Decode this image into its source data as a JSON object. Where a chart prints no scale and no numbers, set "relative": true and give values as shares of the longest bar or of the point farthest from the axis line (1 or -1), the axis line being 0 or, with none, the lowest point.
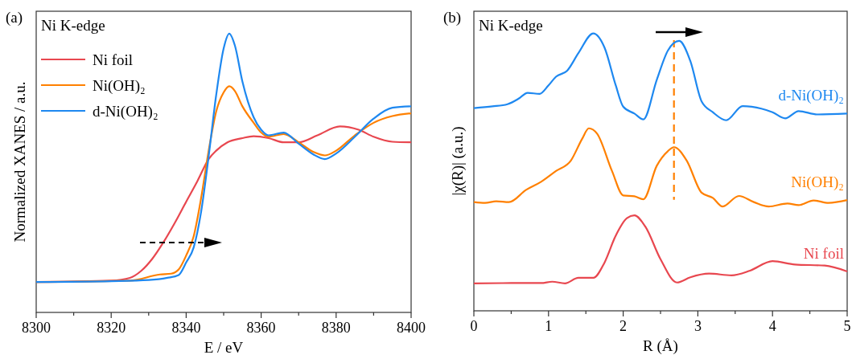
{
  "chart_data": [
    {
      "type": "line",
      "title": "(a)",
      "xlabel": "E / eV",
      "ylabel": "Normalized XANES / a.u.",
      "relative": true,
      "legend": "top left",
      "annotations": [
        "Ni K-edge"
      ],
      "xlim": [
        8300,
        8400
      ],
      "xticks": [
        8300,
        {
          "value": 8310,
          "label": null
        },
        8320,
        {
          "value": 8330,
          "label": null
        },
        8340,
        {
          "value": 8350,
          "label": null
        },
        8360,
        {
          "value": 8370,
          "label": null
        },
        8380,
        {
          "value": 8390,
          "label": null
        },
        8400
      ],
      "series": [
        {
          "name": "Ni foil",
          "color": "#e8474f",
          "x": [
            8300,
            8320,
            8325,
            8328,
            8331,
            8334,
            8337,
            8340,
            8343,
            8346,
            8348,
            8351,
            8355,
            8358,
            8362,
            8366,
            8370,
            8375,
            8381,
            8386,
            8390,
            8395,
            8400
          ],
          "values": [
            0.109,
            0.114,
            0.124,
            0.149,
            0.193,
            0.253,
            0.322,
            0.397,
            0.471,
            0.55,
            0.58,
            0.61,
            0.625,
            0.632,
            0.625,
            0.61,
            0.61,
            0.635,
            0.667,
            0.655,
            0.63,
            0.612,
            0.61
          ]
        },
        {
          "name": "Ni(OH)₂",
          "color": "#ff8000",
          "x": [
            8300,
            8325,
            8333,
            8336,
            8338,
            8340,
            8342,
            8344,
            8346,
            8348,
            8350,
            8351.5,
            8353,
            8355,
            8358,
            8360,
            8362,
            8366,
            8370,
            8374,
            8377,
            8380,
            8385,
            8390,
            8395,
            8400
          ],
          "values": [
            0.109,
            0.114,
            0.136,
            0.139,
            0.154,
            0.204,
            0.273,
            0.411,
            0.58,
            0.72,
            0.789,
            0.811,
            0.794,
            0.739,
            0.68,
            0.645,
            0.63,
            0.64,
            0.61,
            0.575,
            0.563,
            0.58,
            0.635,
            0.68,
            0.704,
            0.714
          ]
        },
        {
          "name": "d-Ni(OH)₂",
          "color": "#1e88f0",
          "x": [
            8300,
            8320,
            8330,
            8335,
            8338,
            8340,
            8342,
            8344,
            8346,
            8348,
            8350,
            8351.5,
            8353,
            8355,
            8358,
            8360,
            8362,
            8366,
            8370,
            8374,
            8377,
            8380,
            8385,
            8390,
            8395,
            8400
          ],
          "values": [
            0.109,
            0.112,
            0.116,
            0.124,
            0.134,
            0.179,
            0.233,
            0.362,
            0.56,
            0.779,
            0.947,
            1,
            0.957,
            0.828,
            0.7,
            0.655,
            0.635,
            0.645,
            0.605,
            0.566,
            0.55,
            0.57,
            0.63,
            0.695,
            0.734,
            0.739
          ]
        }
      ]
    },
    {
      "type": "line",
      "title": "(b)",
      "xlabel": "R (Å)",
      "ylabel": "|χ(R)| (a.u.)",
      "relative": true,
      "legend": false,
      "annotations": [
        "Ni K-edge"
      ],
      "xlim": [
        0,
        5
      ],
      "xticks": [
        0,
        {
          "value": 0.5,
          "label": null
        },
        1,
        {
          "value": 1.5,
          "label": null
        },
        2,
        {
          "value": 2.5,
          "label": null
        },
        3,
        {
          "value": 3.5,
          "label": null
        },
        4,
        {
          "value": 4.5,
          "label": null
        },
        5
      ],
      "ref_lines": [
        {
          "axis": "x",
          "value": 2.68,
          "color": "#ff8000",
          "line_style": "dashed"
        }
      ],
      "series": [
        {
          "name": "d-Ni(OH)₂",
          "color": "#1e88f0",
          "x": [
            0,
            0.25,
            0.45,
            0.6,
            0.72,
            0.88,
            1.0,
            1.1,
            1.25,
            1.4,
            1.6,
            1.75,
            1.9,
            2.0,
            2.15,
            2.27,
            2.45,
            2.6,
            2.75,
            2.9,
            3.05,
            3.2,
            3.38,
            3.6,
            3.85,
            4.0,
            4.17,
            4.35,
            4.6,
            5
          ],
          "values": [
            0.731,
            0.737,
            0.745,
            0.765,
            0.786,
            0.782,
            0.813,
            0.844,
            0.866,
            0.929,
            1,
            0.949,
            0.813,
            0.736,
            0.711,
            0.69,
            0.833,
            0.939,
            0.973,
            0.9,
            0.755,
            0.716,
            0.687,
            0.738,
            0.729,
            0.716,
            0.694,
            0.72,
            0.708,
            0.711
          ]
        },
        {
          "name": "Ni(OH)₂",
          "color": "#ff8000",
          "x": [
            0,
            0.15,
            0.3,
            0.47,
            0.7,
            0.9,
            1.1,
            1.3,
            1.45,
            1.54,
            1.65,
            1.85,
            2.0,
            2.15,
            2.27,
            2.45,
            2.6,
            2.68,
            2.85,
            3.05,
            3.2,
            3.33,
            3.55,
            3.75,
            3.95,
            4.2,
            4.35,
            4.55,
            4.75,
            5
          ],
          "values": [
            0.392,
            0.389,
            0.395,
            0.392,
            0.436,
            0.465,
            0.504,
            0.542,
            0.62,
            0.658,
            0.639,
            0.504,
            0.416,
            0.413,
            0.402,
            0.523,
            0.576,
            0.59,
            0.542,
            0.426,
            0.407,
            0.376,
            0.414,
            0.392,
            0.376,
            0.387,
            0.381,
            0.398,
            0.389,
            0.399
          ]
        },
        {
          "name": "Ni foil",
          "color": "#e8474f",
          "x": [
            0,
            0.5,
            0.9,
            1.05,
            1.22,
            1.4,
            1.6,
            1.75,
            1.9,
            2.05,
            2.15,
            2.3,
            2.5,
            2.72,
            2.9,
            3.15,
            3.45,
            3.7,
            4.0,
            4.3,
            4.7,
            5
          ],
          "values": [
            0.099,
            0.1,
            0.1,
            0.105,
            0.099,
            0.119,
            0.119,
            0.174,
            0.271,
            0.334,
            0.344,
            0.302,
            0.186,
            0.102,
            0.121,
            0.134,
            0.128,
            0.145,
            0.179,
            0.167,
            0.163,
            0.142
          ]
        }
      ]
    }
  ]
}
